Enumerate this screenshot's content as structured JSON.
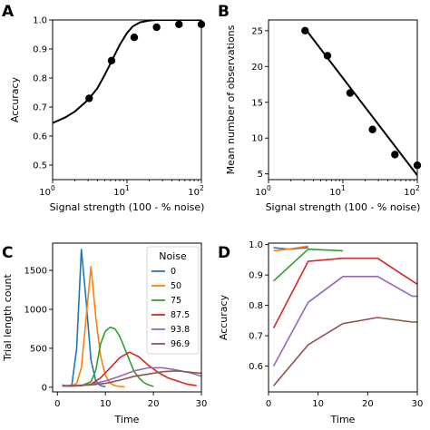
{
  "chart_data": [
    {
      "panel": "A",
      "type": "scatter",
      "xlabel": "Signal strength (100 - % noise)",
      "ylabel": "Accuracy",
      "xscale": "log",
      "xlim": [
        1,
        100
      ],
      "ylim": [
        0.45,
        1.0
      ],
      "xticks": [
        {
          "v": 1,
          "b": "10",
          "e": "0"
        },
        {
          "v": 10,
          "b": "10",
          "e": "1"
        },
        {
          "v": 100,
          "b": "10",
          "e": "2"
        }
      ],
      "yticks": [
        0.5,
        0.6,
        0.7,
        0.8,
        0.9,
        1.0
      ],
      "ytick_labels": [
        "0.5",
        "0.6",
        "0.7",
        "0.8",
        "0.9",
        "1.0"
      ],
      "points": {
        "x": [
          3.1,
          6.2,
          12.5,
          25,
          50,
          100
        ],
        "y": [
          0.73,
          0.86,
          0.94,
          0.975,
          0.985,
          0.985
        ]
      },
      "fit": {
        "x": [
          1,
          1.5,
          2,
          3,
          4,
          5,
          6,
          7,
          8,
          10,
          12,
          15,
          20,
          25,
          30,
          40,
          50,
          70,
          100
        ],
        "y": [
          0.645,
          0.665,
          0.685,
          0.725,
          0.765,
          0.81,
          0.85,
          0.885,
          0.915,
          0.955,
          0.978,
          0.992,
          0.998,
          1.0,
          1.0,
          1.0,
          1.0,
          1.0,
          1.0
        ]
      }
    },
    {
      "panel": "B",
      "type": "scatter",
      "xlabel": "Signal strength (100 - % noise)",
      "ylabel": "Mean number of observations",
      "xscale": "log",
      "xlim": [
        1,
        100
      ],
      "ylim": [
        4.2,
        26.5
      ],
      "xticks": [
        {
          "v": 1,
          "b": "10",
          "e": "0"
        },
        {
          "v": 10,
          "b": "10",
          "e": "1"
        },
        {
          "v": 100,
          "b": "10",
          "e": "2"
        }
      ],
      "yticks": [
        5,
        10,
        15,
        20,
        25
      ],
      "ytick_labels": [
        "5",
        "10",
        "15",
        "20",
        "25"
      ],
      "points": {
        "x": [
          3.1,
          6.2,
          12.5,
          25,
          50,
          100
        ],
        "y": [
          25,
          21.5,
          16.3,
          11.2,
          7.7,
          6.2
        ]
      },
      "fit": {
        "x": [
          3.1,
          100
        ],
        "y": [
          25.3,
          4.8
        ]
      }
    },
    {
      "panel": "C",
      "type": "line",
      "xlabel": "Time",
      "ylabel": "Trial length count",
      "xlim": [
        -1,
        30
      ],
      "ylim": [
        -60,
        1850
      ],
      "xticks": [
        0,
        10,
        20,
        30
      ],
      "xtick_labels": [
        "0",
        "10",
        "20",
        "30"
      ],
      "yticks": [
        0,
        500,
        1000,
        1500
      ],
      "ytick_labels": [
        "0",
        "500",
        "1000",
        "1500"
      ],
      "legend": {
        "title": "Noise",
        "position": "top-right"
      },
      "series": [
        {
          "name": "0",
          "color": "#1f77b4",
          "x": [
            1,
            2,
            3,
            4,
            5,
            6,
            7,
            8,
            9,
            10
          ],
          "y": [
            30,
            15,
            30,
            500,
            1770,
            1100,
            350,
            80,
            20,
            5
          ]
        },
        {
          "name": "50",
          "color": "#ff7f0e",
          "x": [
            1,
            2,
            3,
            4,
            5,
            6,
            7,
            8,
            9,
            10,
            11,
            12,
            13,
            14
          ],
          "y": [
            20,
            15,
            20,
            50,
            250,
            900,
            1550,
            900,
            400,
            150,
            50,
            20,
            10,
            5
          ]
        },
        {
          "name": "75",
          "color": "#2ca02c",
          "x": [
            1,
            3,
            5,
            7,
            8,
            9,
            10,
            11,
            12,
            13,
            14,
            15,
            16,
            17,
            18,
            19,
            20
          ],
          "y": [
            20,
            15,
            20,
            70,
            220,
            560,
            720,
            770,
            750,
            650,
            500,
            350,
            200,
            120,
            60,
            30,
            10
          ]
        },
        {
          "name": "87.5",
          "color": "#d62728",
          "x": [
            1,
            3,
            5,
            7,
            9,
            11,
            13,
            15,
            17,
            19,
            21,
            23,
            25,
            27,
            29
          ],
          "y": [
            20,
            15,
            20,
            40,
            120,
            250,
            380,
            450,
            390,
            280,
            190,
            120,
            80,
            40,
            20
          ]
        },
        {
          "name": "93.8",
          "color": "#9467bd",
          "x": [
            1,
            4,
            7,
            10,
            13,
            16,
            19,
            22,
            25,
            28,
            30
          ],
          "y": [
            20,
            20,
            40,
            80,
            140,
            210,
            250,
            250,
            220,
            180,
            140
          ]
        },
        {
          "name": "96.9",
          "color": "#8c564b",
          "x": [
            1,
            4,
            7,
            10,
            13,
            16,
            19,
            22,
            25,
            28,
            30
          ],
          "y": [
            15,
            20,
            30,
            50,
            90,
            140,
            170,
            200,
            210,
            190,
            180
          ]
        }
      ]
    },
    {
      "panel": "D",
      "type": "line",
      "xlabel": "Time",
      "ylabel": "Accuracy",
      "xlim": [
        0,
        30
      ],
      "ylim": [
        0.515,
        1.005
      ],
      "xticks": [
        0,
        10,
        20,
        30
      ],
      "xtick_labels": [
        "0",
        "10",
        "20",
        "30"
      ],
      "yticks": [
        0.6,
        0.7,
        0.8,
        0.9,
        1.0
      ],
      "ytick_labels": [
        "0.6",
        "0.7",
        "0.8",
        "0.9",
        "1.0"
      ],
      "series": [
        {
          "name": "0",
          "color": "#1f77b4",
          "x": [
            1,
            4,
            8
          ],
          "y": [
            0.99,
            0.985,
            0.99
          ]
        },
        {
          "name": "50",
          "color": "#ff7f0e",
          "x": [
            1,
            4,
            8
          ],
          "y": [
            0.98,
            0.985,
            0.995
          ]
        },
        {
          "name": "75",
          "color": "#2ca02c",
          "x": [
            1,
            8,
            15
          ],
          "y": [
            0.88,
            0.985,
            0.98
          ]
        },
        {
          "name": "87.5",
          "color": "#d62728",
          "x": [
            1,
            8,
            15,
            22,
            29,
            30
          ],
          "y": [
            0.725,
            0.945,
            0.955,
            0.955,
            0.88,
            0.87
          ]
        },
        {
          "name": "93.8",
          "color": "#9467bd",
          "x": [
            1,
            8,
            15,
            22,
            29,
            30
          ],
          "y": [
            0.6,
            0.81,
            0.895,
            0.895,
            0.83,
            0.83
          ]
        },
        {
          "name": "96.9",
          "color": "#8c564b",
          "x": [
            1,
            8,
            15,
            22,
            29,
            30
          ],
          "y": [
            0.535,
            0.67,
            0.74,
            0.76,
            0.745,
            0.745
          ]
        }
      ]
    }
  ]
}
